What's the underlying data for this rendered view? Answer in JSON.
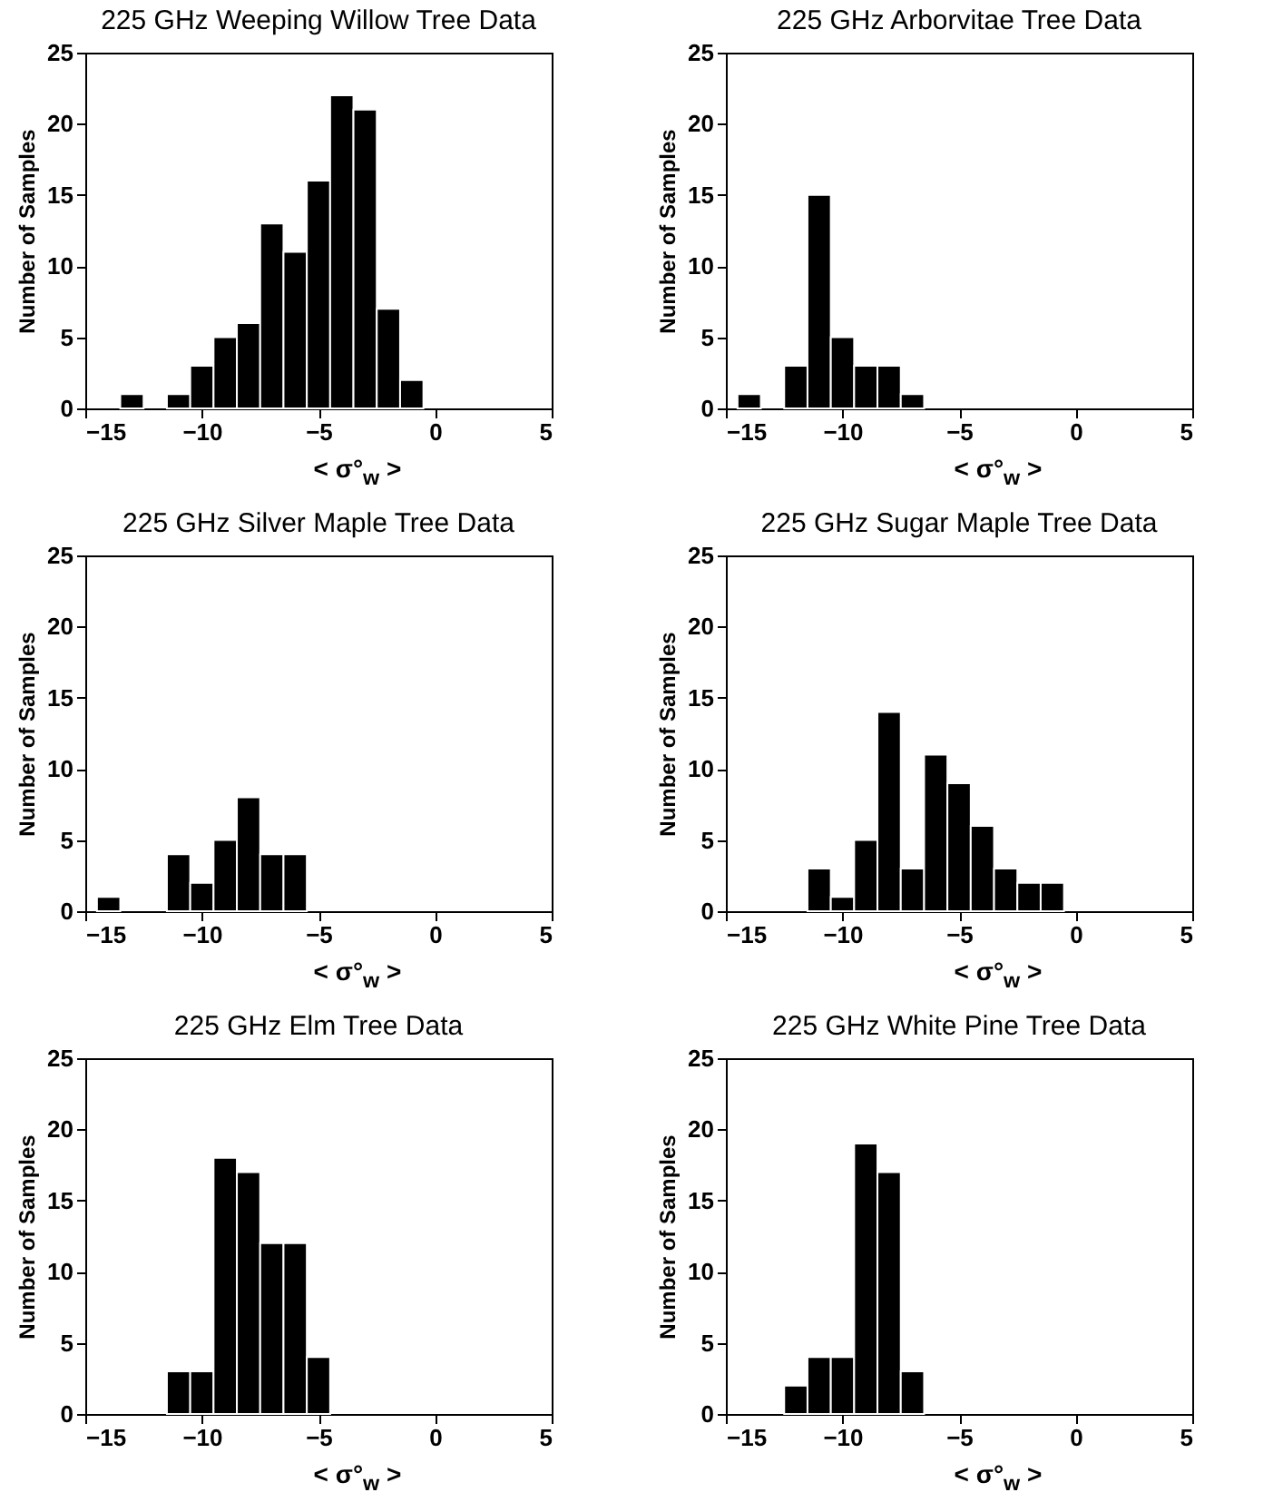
{
  "chart_data": [
    {
      "type": "histogram",
      "title": "225 GHz Weeping Willow Tree Data",
      "xlabel": "< σ°$_{w}$ >",
      "ylabel": "Number of Samples",
      "color": "#000000",
      "xlim": [
        -15,
        5
      ],
      "xticks": [
        -15,
        -10,
        -5,
        0,
        5
      ],
      "ylim": [
        0,
        25
      ],
      "yticks": [
        0,
        5,
        10,
        15,
        20,
        25
      ],
      "bins": [
        -13.5,
        -12.5,
        -11.5,
        -10.5,
        -9.5,
        -8.5,
        -7.5,
        -6.5,
        -5.5,
        -4.5,
        -3.5,
        -2.5,
        -1.5,
        -0.5
      ],
      "values": [
        1,
        0,
        1,
        3,
        5,
        6,
        13,
        11,
        16,
        22,
        21,
        7,
        2
      ]
    },
    {
      "type": "histogram",
      "title": "225 GHz Arborvitae Tree Data",
      "xlabel": "< σ°$_{w}$ >",
      "ylabel": "Number of Samples",
      "color": "#000000",
      "xlim": [
        -15,
        5
      ],
      "xticks": [
        -15,
        -10,
        -5,
        0,
        5
      ],
      "ylim": [
        0,
        25
      ],
      "yticks": [
        0,
        5,
        10,
        15,
        20,
        25
      ],
      "bins": [
        -14.5,
        -13.5,
        -12.5,
        -11.5,
        -10.5,
        -9.5,
        -8.5,
        -7.5,
        -6.5
      ],
      "values": [
        1,
        0,
        3,
        15,
        5,
        3,
        3,
        1
      ]
    },
    {
      "type": "histogram",
      "title": "225 GHz Silver Maple Tree Data",
      "xlabel": "< σ°$_{w}$ >",
      "ylabel": "Number of Samples",
      "color": "#000000",
      "xlim": [
        -15,
        5
      ],
      "xticks": [
        -15,
        -10,
        -5,
        0,
        5
      ],
      "ylim": [
        0,
        25
      ],
      "yticks": [
        0,
        5,
        10,
        15,
        20,
        25
      ],
      "bins": [
        -14.5,
        -13.5,
        -12.5,
        -11.5,
        -10.5,
        -9.5,
        -8.5,
        -7.5,
        -6.5,
        -5.5
      ],
      "values": [
        1,
        0,
        0,
        4,
        2,
        5,
        8,
        4,
        4
      ]
    },
    {
      "type": "histogram",
      "title": "225 GHz Sugar Maple Tree Data",
      "xlabel": "< σ°$_{w}$ >",
      "ylabel": "Number of Samples",
      "color": "#000000",
      "xlim": [
        -15,
        5
      ],
      "xticks": [
        -15,
        -10,
        -5,
        0,
        5
      ],
      "ylim": [
        0,
        25
      ],
      "yticks": [
        0,
        5,
        10,
        15,
        20,
        25
      ],
      "bins": [
        -11.5,
        -10.5,
        -9.5,
        -8.5,
        -7.5,
        -6.5,
        -5.5,
        -4.5,
        -3.5,
        -2.5,
        -1.5,
        -0.5
      ],
      "values": [
        3,
        1,
        5,
        14,
        3,
        11,
        9,
        6,
        3,
        2,
        2
      ]
    },
    {
      "type": "histogram",
      "title": "225 GHz Elm Tree Data",
      "xlabel": "< σ°$_{w}$ >",
      "ylabel": "Number of Samples",
      "color": "#000000",
      "xlim": [
        -15,
        5
      ],
      "xticks": [
        -15,
        -10,
        -5,
        0,
        5
      ],
      "ylim": [
        0,
        25
      ],
      "yticks": [
        0,
        5,
        10,
        15,
        20,
        25
      ],
      "bins": [
        -11.5,
        -10.5,
        -9.5,
        -8.5,
        -7.5,
        -6.5,
        -5.5,
        -4.5
      ],
      "values": [
        3,
        3,
        18,
        17,
        12,
        12,
        4
      ]
    },
    {
      "type": "histogram",
      "title": "225 GHz White Pine Tree Data",
      "xlabel": "< σ°$_{w}$ >",
      "ylabel": "Number of Samples",
      "color": "#000000",
      "xlim": [
        -15,
        5
      ],
      "xticks": [
        -15,
        -10,
        -5,
        0,
        5
      ],
      "ylim": [
        0,
        25
      ],
      "yticks": [
        0,
        5,
        10,
        15,
        20,
        25
      ],
      "bins": [
        -12.5,
        -11.5,
        -10.5,
        -9.5,
        -8.5,
        -7.5,
        -6.5
      ],
      "values": [
        2,
        4,
        4,
        19,
        17,
        3
      ]
    }
  ]
}
